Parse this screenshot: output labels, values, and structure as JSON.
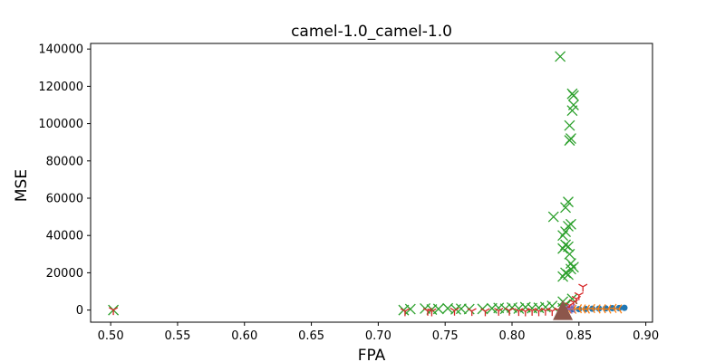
{
  "chart_data": {
    "type": "scatter",
    "title": "camel-1.0_camel-1.0",
    "xlabel": "FPA",
    "ylabel": "MSE",
    "xlim": [
      0.485,
      0.905
    ],
    "ylim": [
      -6500,
      143000
    ],
    "xticks": [
      0.5,
      0.55,
      0.6,
      0.65,
      0.7,
      0.75,
      0.8,
      0.85,
      0.9
    ],
    "xtick_labels": [
      "0.50",
      "0.55",
      "0.60",
      "0.65",
      "0.70",
      "0.75",
      "0.80",
      "0.85",
      "0.90"
    ],
    "yticks": [
      0,
      20000,
      40000,
      60000,
      80000,
      100000,
      120000,
      140000
    ],
    "ytick_labels": [
      "0",
      "20000",
      "40000",
      "60000",
      "80000",
      "100000",
      "120000",
      "140000"
    ],
    "grid": false,
    "series": [
      {
        "marker": "circle",
        "color": "#1f77b4",
        "x": [
          0.84,
          0.845,
          0.85,
          0.855,
          0.86,
          0.865,
          0.87,
          0.875,
          0.88,
          0.884
        ],
        "y": [
          300,
          400,
          500,
          600,
          700,
          800,
          900,
          1000,
          1100,
          1200
        ]
      },
      {
        "marker": "tri_left",
        "color": "#ff7f0e",
        "x": [
          0.838,
          0.842,
          0.846,
          0.85,
          0.853,
          0.856,
          0.86,
          0.864,
          0.868,
          0.872,
          0.876,
          0.88
        ],
        "y": [
          500,
          600,
          400,
          700,
          600,
          500,
          800,
          600,
          700,
          500,
          900,
          600
        ]
      },
      {
        "marker": "x",
        "color": "#2ca02c",
        "x": [
          0.502,
          0.719,
          0.724,
          0.735,
          0.74,
          0.745,
          0.752,
          0.758,
          0.762,
          0.768,
          0.778,
          0.785,
          0.79,
          0.795,
          0.8,
          0.805,
          0.81,
          0.815,
          0.82,
          0.825,
          0.83,
          0.836,
          0.831,
          0.838,
          0.84,
          0.842,
          0.843,
          0.844,
          0.845,
          0.846,
          0.838,
          0.84,
          0.842,
          0.844,
          0.846,
          0.843,
          0.845,
          0.84,
          0.842,
          0.838,
          0.844,
          0.846,
          0.84,
          0.842,
          0.838,
          0.844,
          0.843,
          0.845,
          0.84,
          0.838
        ],
        "y": [
          0,
          0,
          500,
          800,
          300,
          600,
          900,
          400,
          700,
          500,
          600,
          900,
          1100,
          700,
          1300,
          800,
          1500,
          1000,
          1200,
          1600,
          2200,
          136000,
          50000,
          4500,
          55000,
          58000,
          91000,
          92000,
          107000,
          110000,
          40000,
          42000,
          45000,
          46000,
          115000,
          99000,
          116000,
          35000,
          34000,
          33000,
          25000,
          23000,
          20000,
          19000,
          18000,
          22000,
          30000,
          6000,
          3000,
          1000
        ]
      },
      {
        "marker": "tri_down",
        "color": "#d62728",
        "x": [
          0.502,
          0.72,
          0.737,
          0.74,
          0.757,
          0.77,
          0.78,
          0.79,
          0.798,
          0.805,
          0.81,
          0.815,
          0.82,
          0.825,
          0.83,
          0.835,
          0.84,
          0.843,
          0.846,
          0.848,
          0.85,
          0.853
        ],
        "y": [
          0,
          -600,
          -400,
          -700,
          -300,
          -500,
          -600,
          -400,
          -300,
          -500,
          -700,
          -400,
          -600,
          -300,
          -500,
          -200,
          900,
          2500,
          4200,
          6000,
          8000,
          12500
        ]
      },
      {
        "marker": "tri_left",
        "color": "#9467bd",
        "x": [
          0.838,
          0.84,
          0.843,
          0.845
        ],
        "y": [
          300,
          600,
          400,
          900
        ]
      },
      {
        "marker": "triangle",
        "color": "#8c564b",
        "x": [
          0.838
        ],
        "y": [
          0
        ]
      }
    ]
  }
}
